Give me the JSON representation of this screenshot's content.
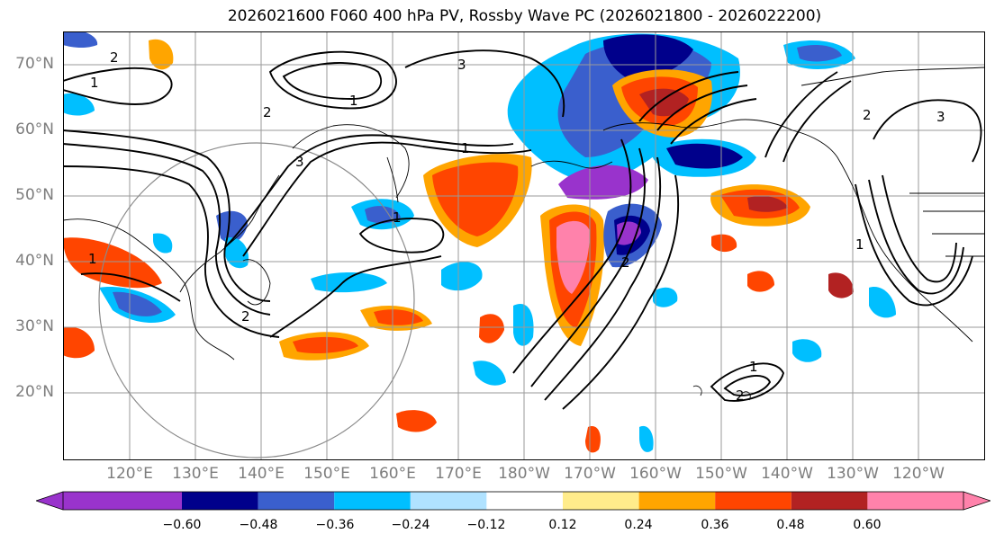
{
  "title": "2026021600 F060 400 hPa PV, Rossby Wave PC (2026021800 - 2026022200)",
  "lat_labels": [
    "70°N",
    "60°N",
    "50°N",
    "40°N",
    "30°N",
    "20°N"
  ],
  "lon_labels": [
    "120°E",
    "130°E",
    "140°E",
    "150°E",
    "160°E",
    "170°E",
    "180°W",
    "170°W",
    "160°W",
    "150°W",
    "140°W",
    "130°W",
    "120°W"
  ],
  "colorbar": {
    "ticks": [
      "−0.60",
      "−0.48",
      "−0.36",
      "−0.24",
      "−0.12",
      "0.12",
      "0.24",
      "0.36",
      "0.48",
      "0.60"
    ],
    "colors": [
      "#9933cc",
      "#00008b",
      "#3a5fcd",
      "#00bfff",
      "#b0e2ff",
      "#ffffff",
      "#ffec8b",
      "#ffa500",
      "#ff4500",
      "#b22222",
      "#ff82ab"
    ]
  },
  "contour_labels": [
    "2",
    "1",
    "1",
    "2",
    "3",
    "1",
    "3",
    "2",
    "2",
    "1",
    "1",
    "1",
    "2",
    "3",
    "1",
    "2"
  ],
  "colors": {
    "grid": "#9a9a9a",
    "contour": "#000000",
    "axis_text": "#7d7d7d"
  }
}
